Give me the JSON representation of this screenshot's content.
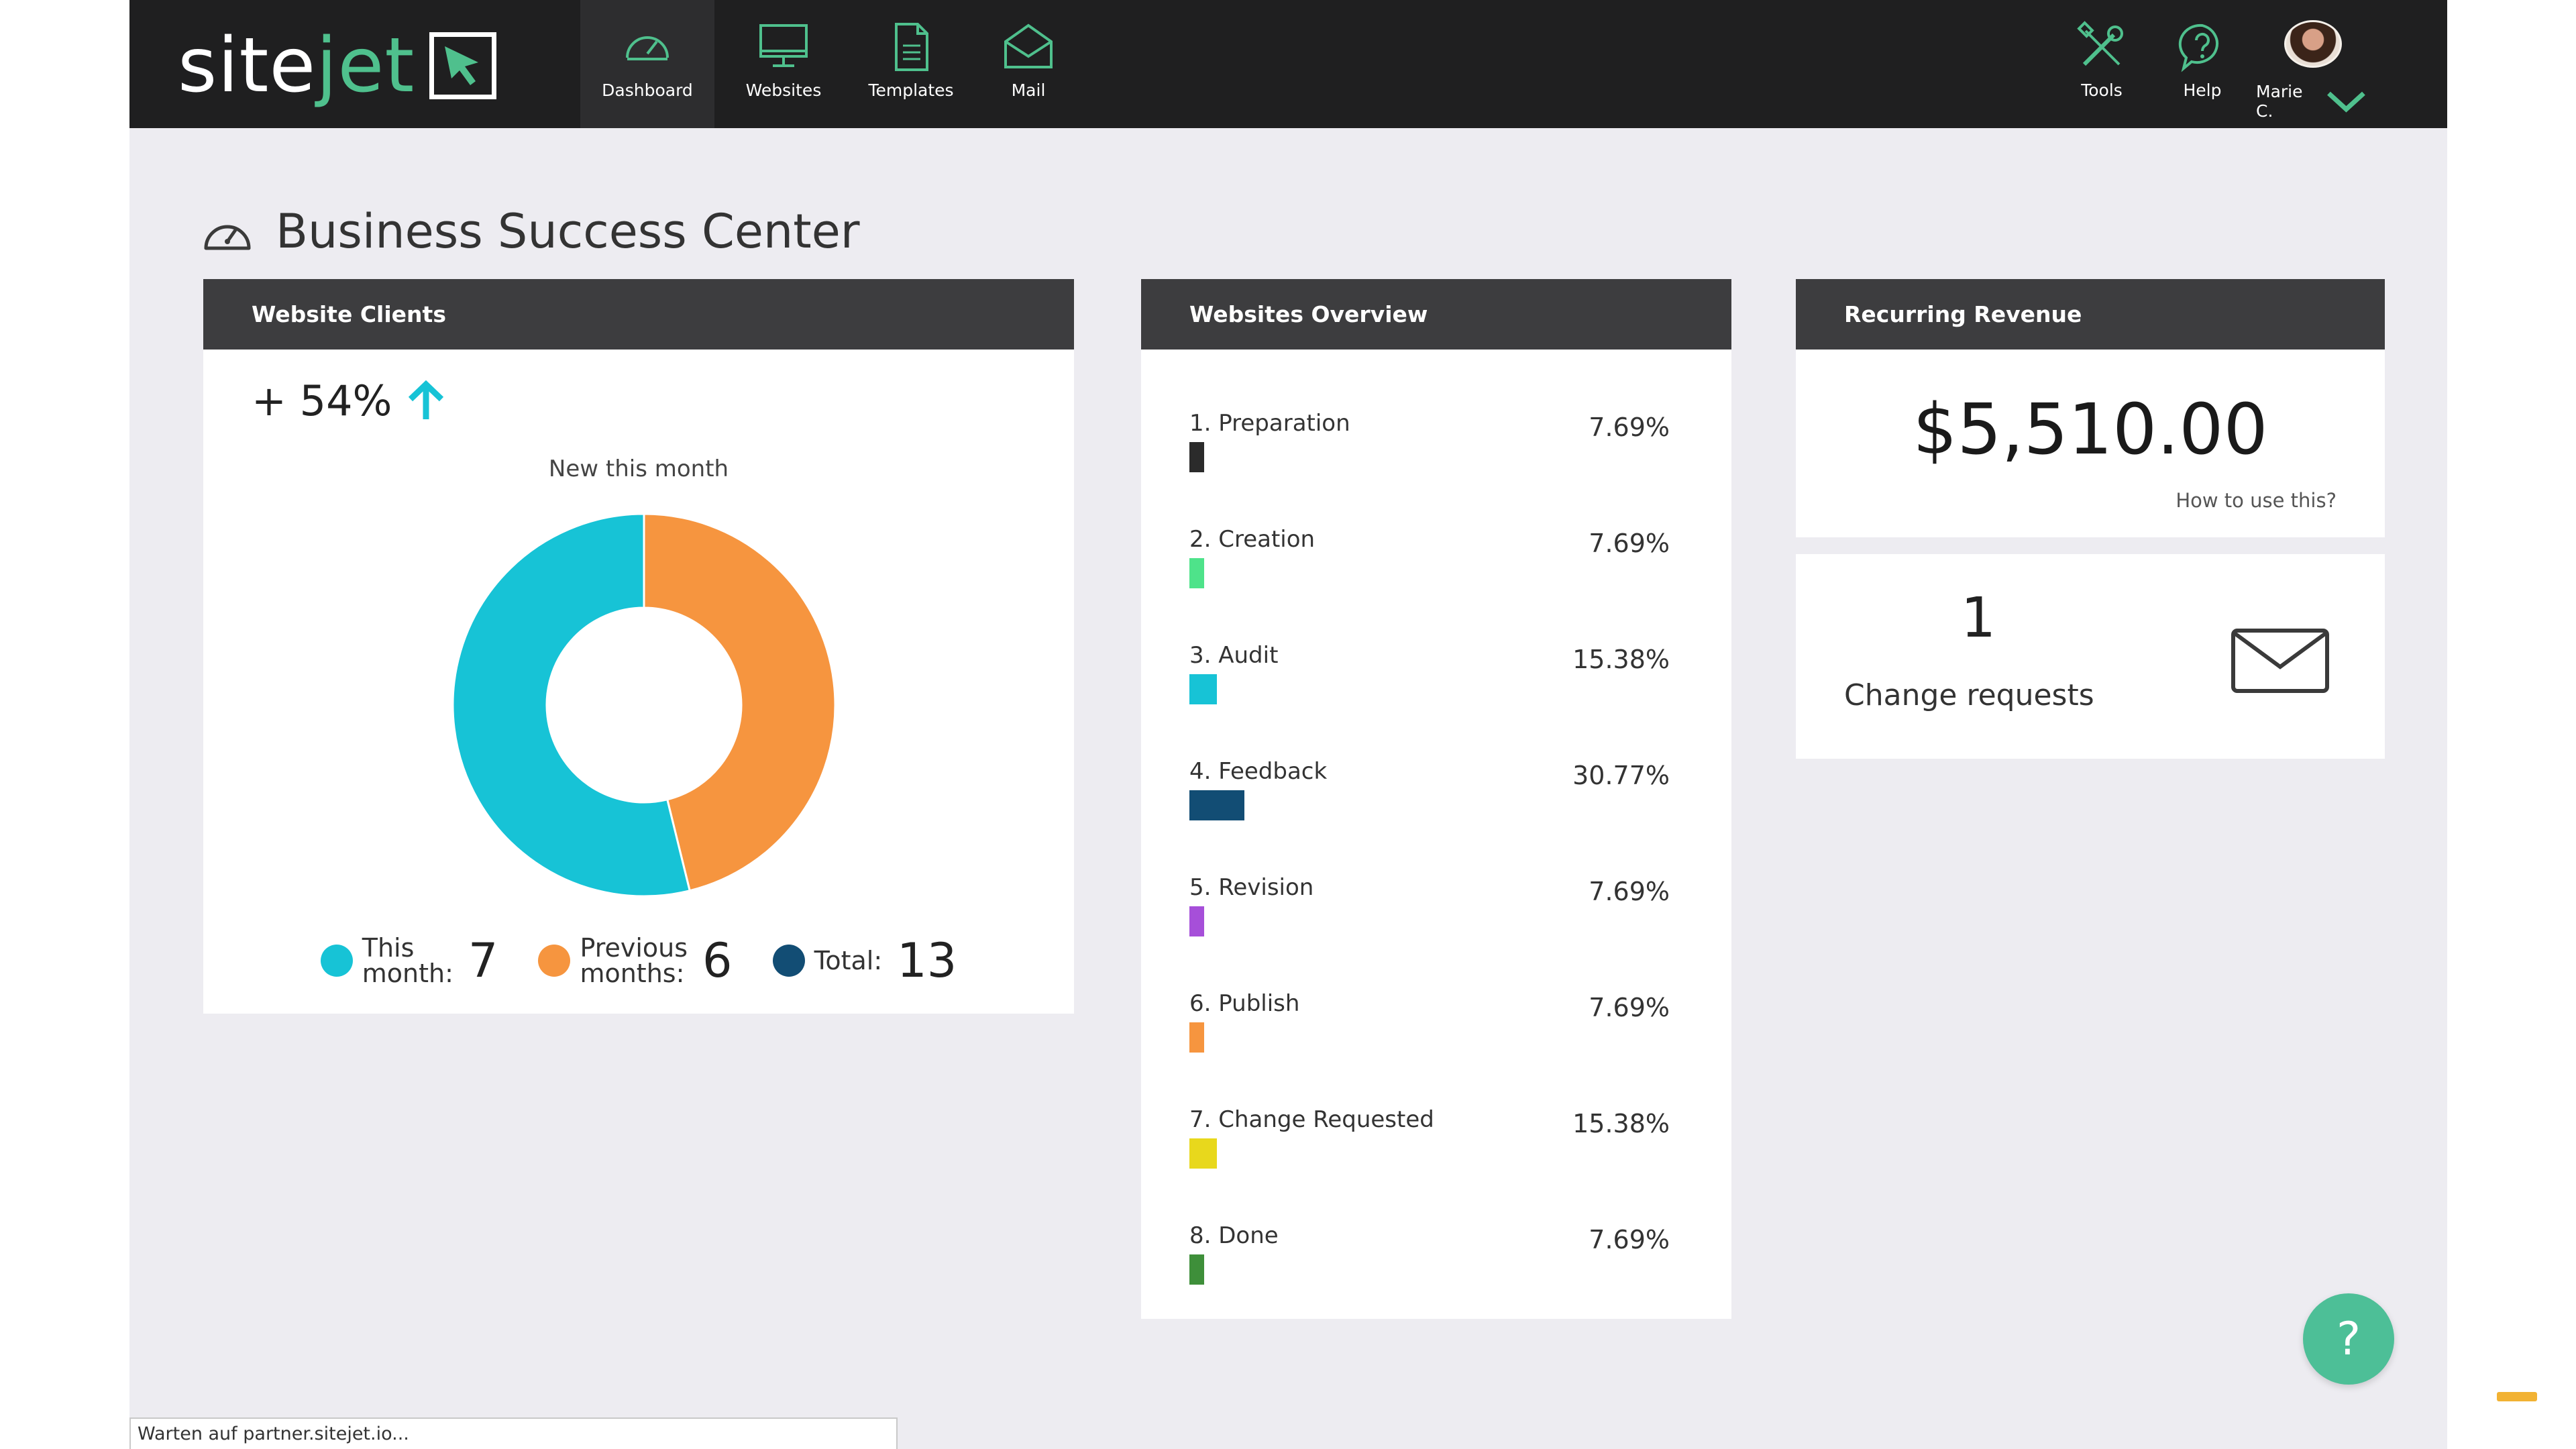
{
  "logo": {
    "part1": "site",
    "part2": "jet"
  },
  "nav": {
    "items": [
      {
        "label": "Dashboard",
        "icon": "speedometer-icon"
      },
      {
        "label": "Websites",
        "icon": "monitor-icon"
      },
      {
        "label": "Templates",
        "icon": "document-icon"
      },
      {
        "label": "Mail",
        "icon": "envelope-open-icon"
      }
    ],
    "right": [
      {
        "label": "Tools",
        "icon": "tools-icon"
      },
      {
        "label": "Help",
        "icon": "help-bubble-icon"
      }
    ],
    "user": {
      "name": "Marie C."
    }
  },
  "page": {
    "title": "Business Success Center",
    "title_icon": "speedometer-icon"
  },
  "clients": {
    "header": "Website Clients",
    "growth": "+ 54%",
    "subtitle": "New this month",
    "legend": [
      {
        "label_line1": "This",
        "label_line2": "month:",
        "value": "7",
        "color": "#17c3d6"
      },
      {
        "label_line1": "Previous",
        "label_line2": "months:",
        "value": "6",
        "color": "#f6953f"
      },
      {
        "label_line1": "Total:",
        "label_line2": "",
        "value": "13",
        "color": "#124d74"
      }
    ]
  },
  "chart_data": {
    "type": "pie",
    "title": "New this month",
    "categories": [
      "This month",
      "Previous months"
    ],
    "values": [
      7,
      6
    ],
    "colors": [
      "#17c3d6",
      "#f6953f"
    ],
    "donut": true,
    "total": 13
  },
  "overview": {
    "header": "Websites Overview",
    "rows": [
      {
        "label": "1. Preparation",
        "pct": "7.69%",
        "value": 7.69,
        "color": "#2b2b2b"
      },
      {
        "label": "2. Creation",
        "pct": "7.69%",
        "value": 7.69,
        "color": "#4ee38a"
      },
      {
        "label": "3. Audit",
        "pct": "15.38%",
        "value": 15.38,
        "color": "#17c3d6"
      },
      {
        "label": "4. Feedback",
        "pct": "30.77%",
        "value": 30.77,
        "color": "#124d74"
      },
      {
        "label": "5. Revision",
        "pct": "7.69%",
        "value": 7.69,
        "color": "#a64fd9"
      },
      {
        "label": "6. Publish",
        "pct": "7.69%",
        "value": 7.69,
        "color": "#f6953f"
      },
      {
        "label": "7. Change Requested",
        "pct": "15.38%",
        "value": 15.38,
        "color": "#e8d81c"
      },
      {
        "label": "8. Done",
        "pct": "7.69%",
        "value": 7.69,
        "color": "#3e8f3a"
      }
    ]
  },
  "revenue": {
    "header": "Recurring Revenue",
    "value": "$5,510.00",
    "help_link": "How to use this?"
  },
  "change_requests": {
    "count": "1",
    "label": "Change requests",
    "icon": "envelope-icon"
  },
  "help_fab": {
    "label": "?"
  },
  "statusbar": {
    "text": "Warten auf partner.sitejet.io..."
  }
}
